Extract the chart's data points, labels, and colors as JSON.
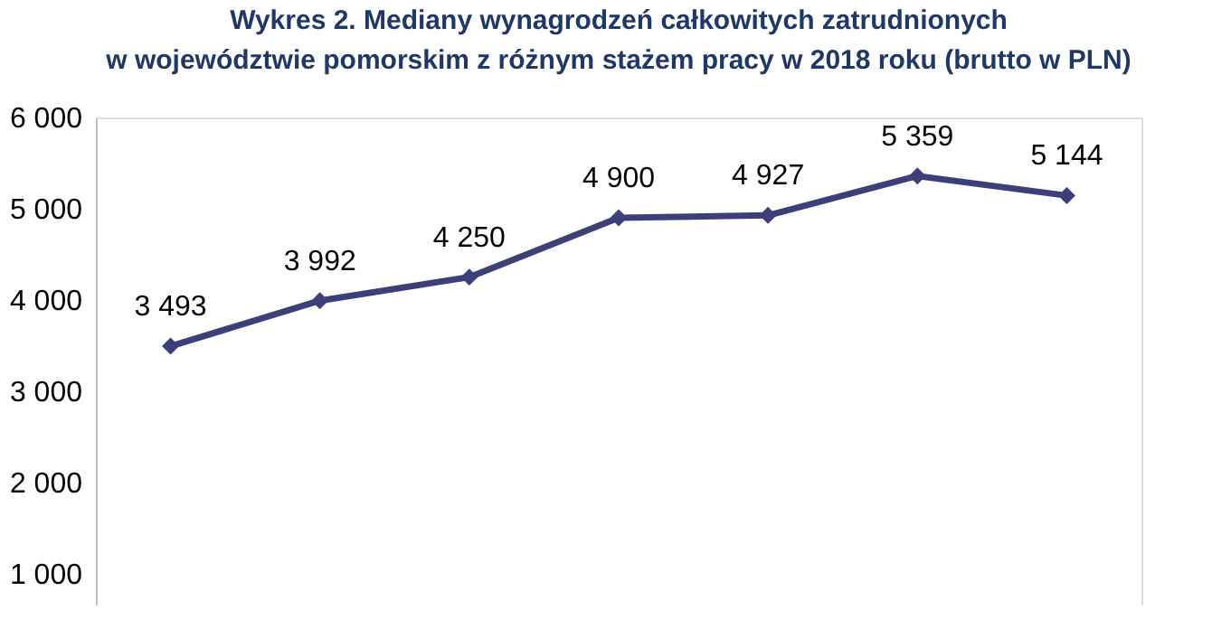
{
  "chart_data": {
    "type": "line",
    "title": [
      "Wykres 2. Mediany wynagrodzeń całkowitych zatrudnionych",
      "w województwie pomorskim z różnym stażem pracy w 2018 roku (brutto w PLN)"
    ],
    "categories": [
      null,
      null,
      null,
      null,
      null,
      null,
      null
    ],
    "series": [
      {
        "color": "#3c3f78",
        "values": [
          3493,
          3992,
          4250,
          4900,
          4927,
          5359,
          5144
        ],
        "value_labels": [
          "3 493",
          "3 992",
          "4 250",
          "4 900",
          "4 927",
          "5 359",
          "5 144"
        ]
      }
    ],
    "ylim": [
      650,
      6000
    ],
    "yticks": [
      {
        "value": 1000,
        "label": "1 000"
      },
      {
        "value": 2000,
        "label": "2 000"
      },
      {
        "value": 3000,
        "label": "3 000"
      },
      {
        "value": 4000,
        "label": "4 000"
      },
      {
        "value": 5000,
        "label": "5 000"
      },
      {
        "value": 6000,
        "label": "6 000"
      }
    ],
    "tick_labels": "y",
    "grid": false,
    "marker": "diamond",
    "line_style": "solid"
  }
}
